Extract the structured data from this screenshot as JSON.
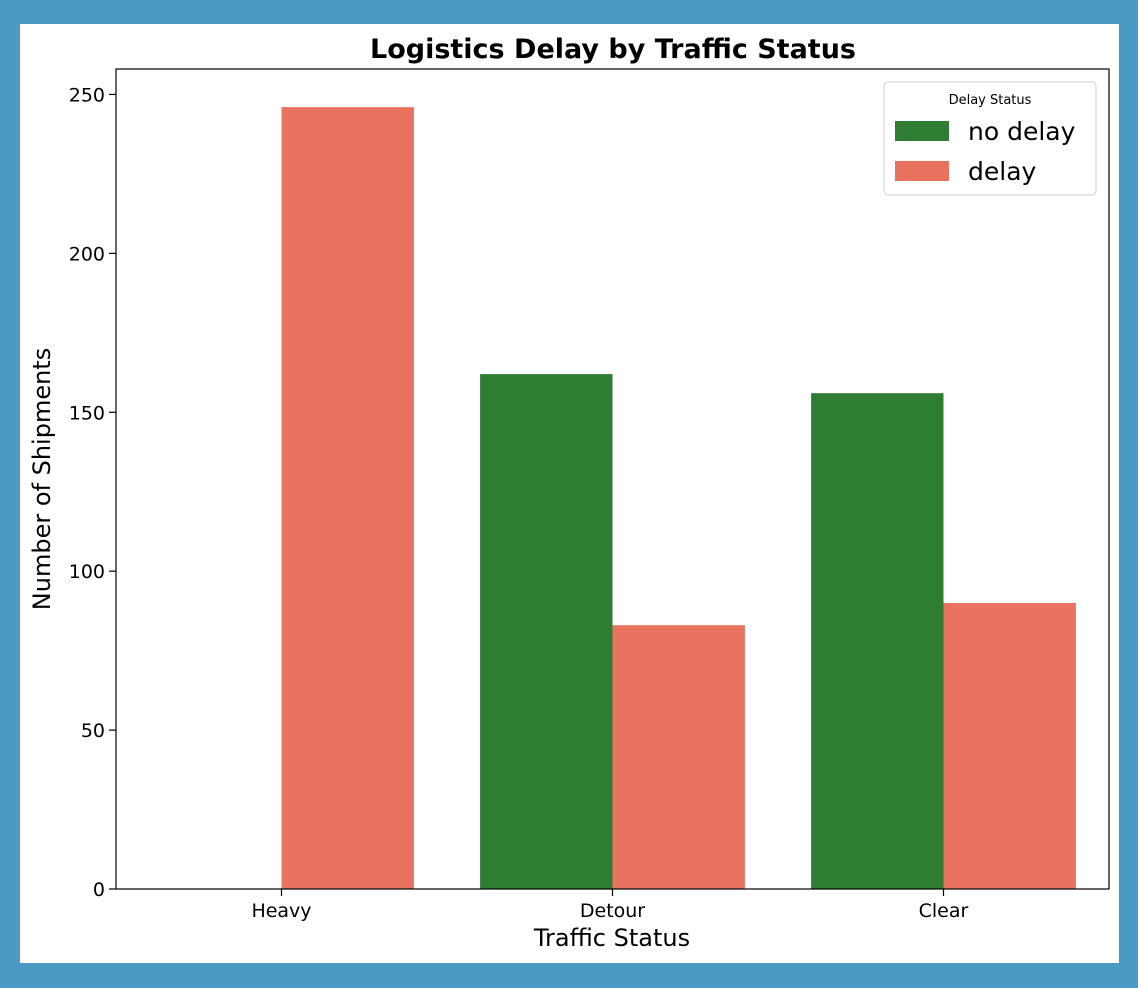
{
  "chart_data": {
    "type": "bar",
    "title": "Logistics Delay by Traffic Status",
    "xlabel": "Traffic Status",
    "ylabel": "Number of Shipments",
    "categories": [
      "Heavy",
      "Detour",
      "Clear"
    ],
    "series": [
      {
        "name": "no delay",
        "color": "#2e7d32",
        "values": [
          0,
          162,
          156
        ]
      },
      {
        "name": "delay",
        "color": "#ea735f",
        "values": [
          246,
          83,
          90
        ]
      }
    ],
    "ylim": [
      0,
      258
    ],
    "yticks": [
      0,
      50,
      100,
      150,
      200,
      250
    ],
    "grid": false,
    "legend": {
      "title": "Delay Status",
      "placement": "top-right"
    }
  },
  "colors": {
    "frame_border": "#4b9ac4",
    "background": "#ffffff"
  }
}
